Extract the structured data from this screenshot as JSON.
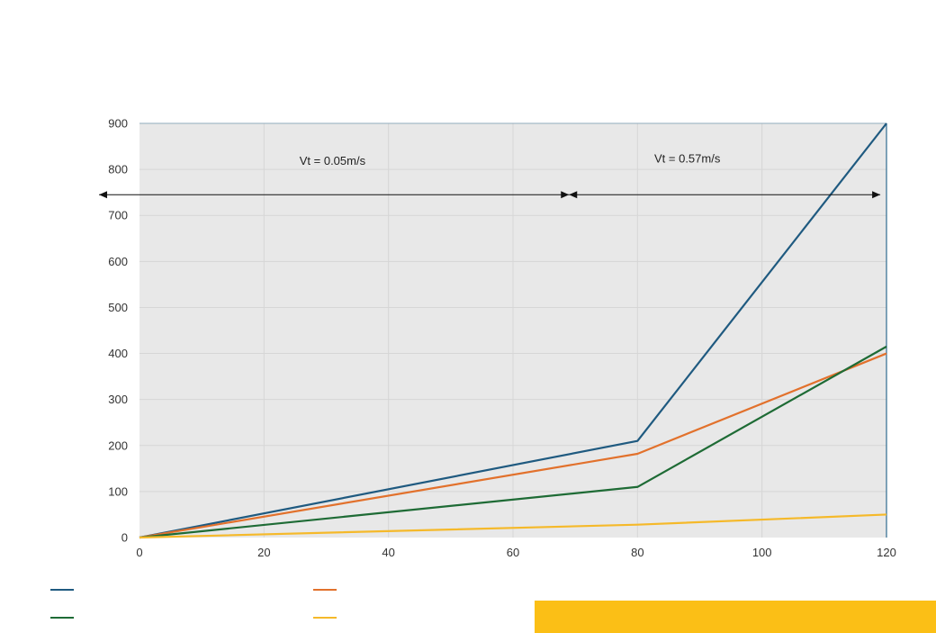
{
  "chart_data": {
    "type": "line",
    "x": [
      0,
      80,
      120
    ],
    "series": [
      {
        "values": [
          0,
          210,
          900
        ],
        "color": "#1f5a80"
      },
      {
        "values": [
          0,
          182,
          400
        ],
        "color": "#e2712c"
      },
      {
        "values": [
          0,
          110,
          415
        ],
        "color": "#1e6b35"
      },
      {
        "values": [
          0,
          28,
          50
        ],
        "color": "#f5b92a"
      }
    ],
    "xlim": [
      0,
      120
    ],
    "ylim": [
      0,
      900
    ],
    "xticks": [
      0,
      20,
      40,
      60,
      80,
      100,
      120
    ],
    "yticks": [
      0,
      100,
      200,
      300,
      400,
      500,
      600,
      700,
      800,
      900
    ],
    "grid": true,
    "plot_background": "#e8e8e8",
    "gridline_color": "#d6d6d6",
    "annotations": [
      {
        "text": "Vt = 0.05m/s",
        "x": 31,
        "y": 810,
        "arrow_from_x": -6.5,
        "arrow_to_x": 69,
        "arrow_y": 745
      },
      {
        "text": "Vt = 0.57m/s",
        "x": 88,
        "y": 815,
        "arrow_from_x": 69,
        "arrow_to_x": 119,
        "arrow_y": 745
      }
    ],
    "legend": {
      "placement": "bottom",
      "entries": [
        {
          "color": "#1f5a80"
        },
        {
          "color": "#e2712c"
        },
        {
          "color": "#1e6b35"
        },
        {
          "color": "#f5b92a"
        }
      ]
    },
    "footer_bar_color": "#fbbf16"
  }
}
